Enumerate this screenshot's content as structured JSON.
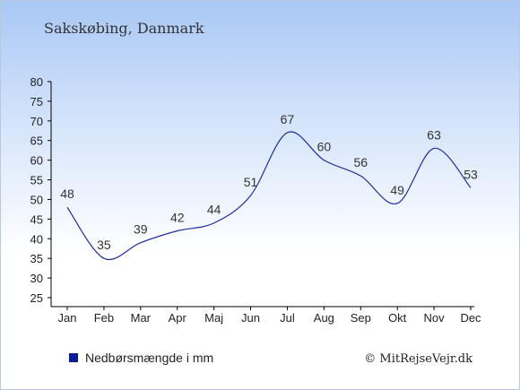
{
  "title": "Sakskøbing, Danmark",
  "credit": "© MitRejseVejr.dk",
  "legend": {
    "label": "Nedbørsmængde i mm",
    "color": "#0a1a9a"
  },
  "colors": {
    "line": "#1f2f9c",
    "axis": "#000000"
  },
  "chart_data": {
    "type": "line",
    "categories": [
      "Jan",
      "Feb",
      "Mar",
      "Apr",
      "Maj",
      "Jun",
      "Jul",
      "Aug",
      "Sep",
      "Okt",
      "Nov",
      "Dec"
    ],
    "series": [
      {
        "name": "Nedbørsmængde i mm",
        "values": [
          48,
          35,
          39,
          42,
          44,
          51,
          67,
          60,
          56,
          49,
          63,
          53
        ]
      }
    ],
    "ylim": [
      25,
      80
    ],
    "yticks": [
      25,
      30,
      35,
      40,
      45,
      50,
      55,
      60,
      65,
      70,
      75,
      80
    ],
    "grid": false,
    "legend_position": "bottom-left"
  }
}
